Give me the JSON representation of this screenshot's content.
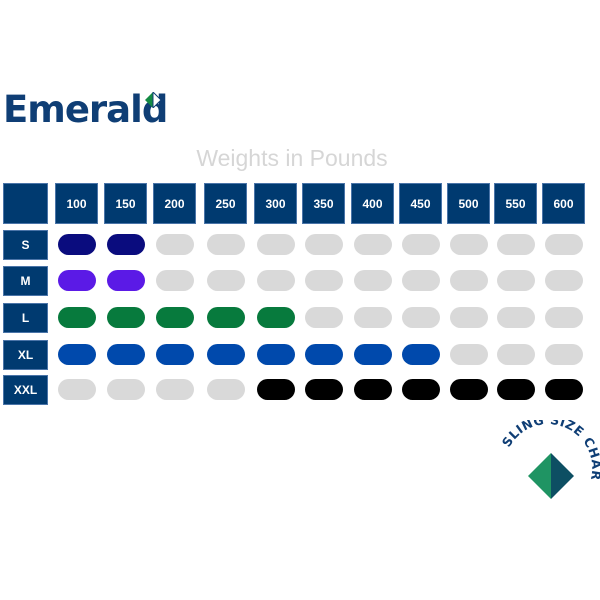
{
  "brand": {
    "name": "Emerald"
  },
  "title": "Weights in Pounds",
  "chart_data": {
    "type": "table",
    "title": "Weights in Pounds",
    "columns": [
      "100",
      "150",
      "200",
      "250",
      "300",
      "350",
      "400",
      "450",
      "500",
      "550",
      "600"
    ],
    "rows": [
      {
        "size": "S",
        "color": "#0a0c7e",
        "filled": 2
      },
      {
        "size": "M",
        "color": "#5b1ae6",
        "filled": 2
      },
      {
        "size": "L",
        "color": "#077a3d",
        "filled": 5
      },
      {
        "size": "XL",
        "color": "#0049ac",
        "filled": 8
      },
      {
        "size": "XXL",
        "color": "#000000",
        "filled_range": [
          5,
          11
        ]
      }
    ],
    "empty_color": "#d9d9d9",
    "header_color": "#003a70"
  },
  "stamp": {
    "text": "SLING SIZE CHART"
  }
}
